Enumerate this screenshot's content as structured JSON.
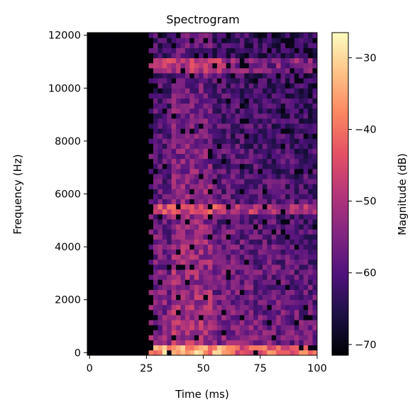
{
  "chart_data": {
    "type": "heatmap",
    "title": "Spectrogram",
    "xlabel": "Time (ms)",
    "ylabel": "Frequency (Hz)",
    "colorbar_label": "Magnitude (dB)",
    "colormap": "magma",
    "x_range": [
      -1,
      100
    ],
    "y_range": [
      -100,
      12100
    ],
    "color_range": [
      -71.5,
      -26.5
    ],
    "x_ticks": [
      0,
      25,
      50,
      75,
      100
    ],
    "x_tick_labels": [
      "0",
      "25",
      "50",
      "75",
      "100"
    ],
    "y_ticks": [
      0,
      2000,
      4000,
      6000,
      8000,
      10000,
      12000
    ],
    "y_tick_labels": [
      "0",
      "2000",
      "4000",
      "6000",
      "8000",
      "10000",
      "12000"
    ],
    "colorbar_ticks": [
      -70,
      -60,
      -50,
      -40,
      -30
    ],
    "colorbar_tick_labels": [
      "−70",
      "−60",
      "−50",
      "−40",
      "−30"
    ],
    "time_bins_ms": [
      0,
      100
    ],
    "n_time_bins": 50,
    "frequency_bins_hz": [
      0,
      12000
    ],
    "n_frequency_bins": 64,
    "silent_until_ms": 29,
    "silent_level_db": -71.5,
    "active_level_db_range": [
      -66,
      -26
    ],
    "strong_bands_hz": [
      {
        "frequency": 0,
        "level_db": -34
      },
      {
        "frequency": 5440,
        "level_db": -43
      },
      {
        "frequency": 10880,
        "level_db": -47
      }
    ]
  }
}
